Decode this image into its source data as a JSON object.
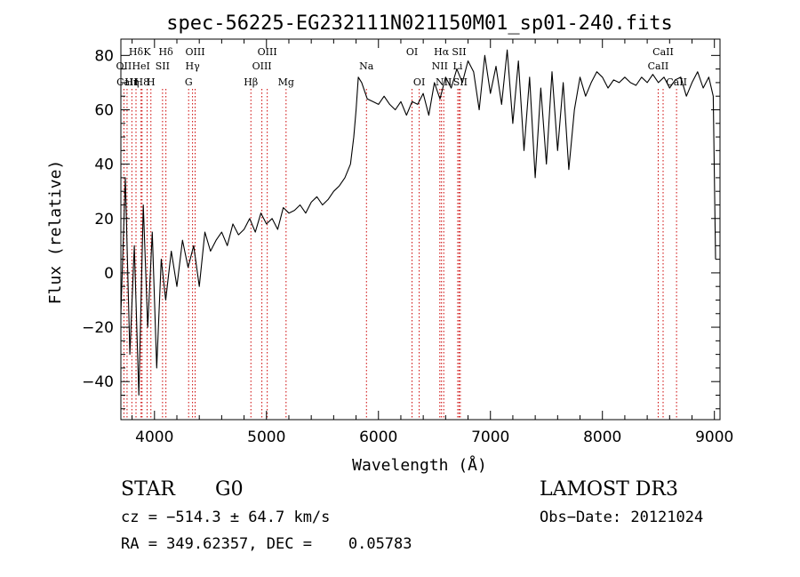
{
  "chart_data": {
    "type": "line",
    "title": "spec-56225-EG232111N021150M01_sp01-240.fits",
    "xlabel": "Wavelength (Å)",
    "ylabel": "Flux (relative)",
    "xlim": [
      3700,
      9050
    ],
    "ylim": [
      -54,
      86
    ],
    "xticks": [
      4000,
      5000,
      6000,
      7000,
      8000,
      9000
    ],
    "yticks": [
      -40,
      -20,
      0,
      20,
      40,
      60,
      80
    ],
    "line_color": "#000000",
    "marker_color": "#cc0000",
    "grid": false,
    "series": [
      {
        "name": "",
        "x": [
          3700,
          3740,
          3780,
          3820,
          3860,
          3900,
          3940,
          3980,
          4020,
          4060,
          4100,
          4150,
          4200,
          4250,
          4300,
          4350,
          4400,
          4450,
          4500,
          4550,
          4600,
          4650,
          4700,
          4750,
          4800,
          4850,
          4900,
          4950,
          5000,
          5050,
          5100,
          5150,
          5200,
          5250,
          5300,
          5350,
          5400,
          5450,
          5500,
          5550,
          5600,
          5650,
          5700,
          5750,
          5780,
          5800,
          5820,
          5850,
          5900,
          5950,
          6000,
          6050,
          6100,
          6150,
          6200,
          6250,
          6300,
          6350,
          6400,
          6450,
          6500,
          6550,
          6600,
          6650,
          6700,
          6750,
          6800,
          6850,
          6900,
          6950,
          7000,
          7050,
          7100,
          7150,
          7200,
          7250,
          7300,
          7350,
          7400,
          7450,
          7500,
          7550,
          7600,
          7650,
          7700,
          7750,
          7800,
          7850,
          7900,
          7950,
          8000,
          8050,
          8100,
          8150,
          8200,
          8250,
          8300,
          8350,
          8400,
          8450,
          8500,
          8550,
          8600,
          8650,
          8700,
          8750,
          8800,
          8850,
          8900,
          8950,
          8990,
          9010
        ],
        "y": [
          -15,
          35,
          -30,
          10,
          -45,
          25,
          -20,
          15,
          -35,
          5,
          -10,
          8,
          -5,
          12,
          2,
          10,
          -5,
          15,
          8,
          12,
          15,
          10,
          18,
          14,
          16,
          20,
          15,
          22,
          18,
          20,
          16,
          24,
          22,
          23,
          25,
          22,
          26,
          28,
          25,
          27,
          30,
          32,
          35,
          40,
          50,
          60,
          72,
          70,
          64,
          63,
          62,
          65,
          62,
          60,
          63,
          58,
          63,
          62,
          66,
          58,
          70,
          64,
          72,
          68,
          75,
          70,
          78,
          74,
          60,
          80,
          66,
          76,
          62,
          82,
          55,
          78,
          45,
          72,
          35,
          68,
          40,
          74,
          45,
          70,
          38,
          60,
          72,
          65,
          70,
          74,
          72,
          68,
          71,
          70,
          72,
          70,
          69,
          72,
          70,
          73,
          70,
          72,
          68,
          71,
          72,
          65,
          70,
          74,
          68,
          72,
          65,
          5
        ]
      }
    ],
    "line_markers": [
      {
        "label": "Hδ",
        "wl": 3835,
        "row": 1
      },
      {
        "label": "OII",
        "wl": 3727,
        "row": 2
      },
      {
        "label": "CaII",
        "wl": 3755,
        "row": 3
      },
      {
        "label": "H8",
        "wl": 3889,
        "row": 3
      },
      {
        "label": "K",
        "wl": 3934,
        "row": 1
      },
      {
        "label": "HeI",
        "wl": 3880,
        "row": 2
      },
      {
        "label": "Hη",
        "wl": 3798,
        "row": 3
      },
      {
        "label": "Hδ",
        "wl": 4102,
        "row": 1
      },
      {
        "label": "SII",
        "wl": 4072,
        "row": 2
      },
      {
        "label": "H",
        "wl": 3968,
        "row": 3
      },
      {
        "label": "OIII",
        "wl": 4363,
        "row": 1
      },
      {
        "label": "Hγ",
        "wl": 4340,
        "row": 2
      },
      {
        "label": "G",
        "wl": 4305,
        "row": 3
      },
      {
        "label": "OIII",
        "wl": 5007,
        "row": 1
      },
      {
        "label": "OIII",
        "wl": 4959,
        "row": 2
      },
      {
        "label": "Hβ",
        "wl": 4861,
        "row": 3
      },
      {
        "label": "Mg",
        "wl": 5175,
        "row": 3
      },
      {
        "label": "Na",
        "wl": 5893,
        "row": 2
      },
      {
        "label": "OI",
        "wl": 6300,
        "row": 1
      },
      {
        "label": "OI",
        "wl": 6364,
        "row": 3
      },
      {
        "label": "Hα",
        "wl": 6563,
        "row": 1
      },
      {
        "label": "SII",
        "wl": 6720,
        "row": 1
      },
      {
        "label": "NII",
        "wl": 6548,
        "row": 2
      },
      {
        "label": "Li",
        "wl": 6708,
        "row": 2
      },
      {
        "label": "NII",
        "wl": 6583,
        "row": 3
      },
      {
        "label": "SII",
        "wl": 6731,
        "row": 3
      },
      {
        "label": "CaII",
        "wl": 8542,
        "row": 1
      },
      {
        "label": "CaII",
        "wl": 8498,
        "row": 2
      },
      {
        "label": "CaII",
        "wl": 8662,
        "row": 3
      }
    ]
  },
  "info": {
    "object_class": "STAR",
    "subclass": "G0",
    "survey": "LAMOST DR3",
    "cz": "cz = −514.3 ± 64.7 km/s",
    "obs_date": "Obs−Date: 20121024",
    "coords": "RA = 349.62357, DEC =    0.05783"
  }
}
